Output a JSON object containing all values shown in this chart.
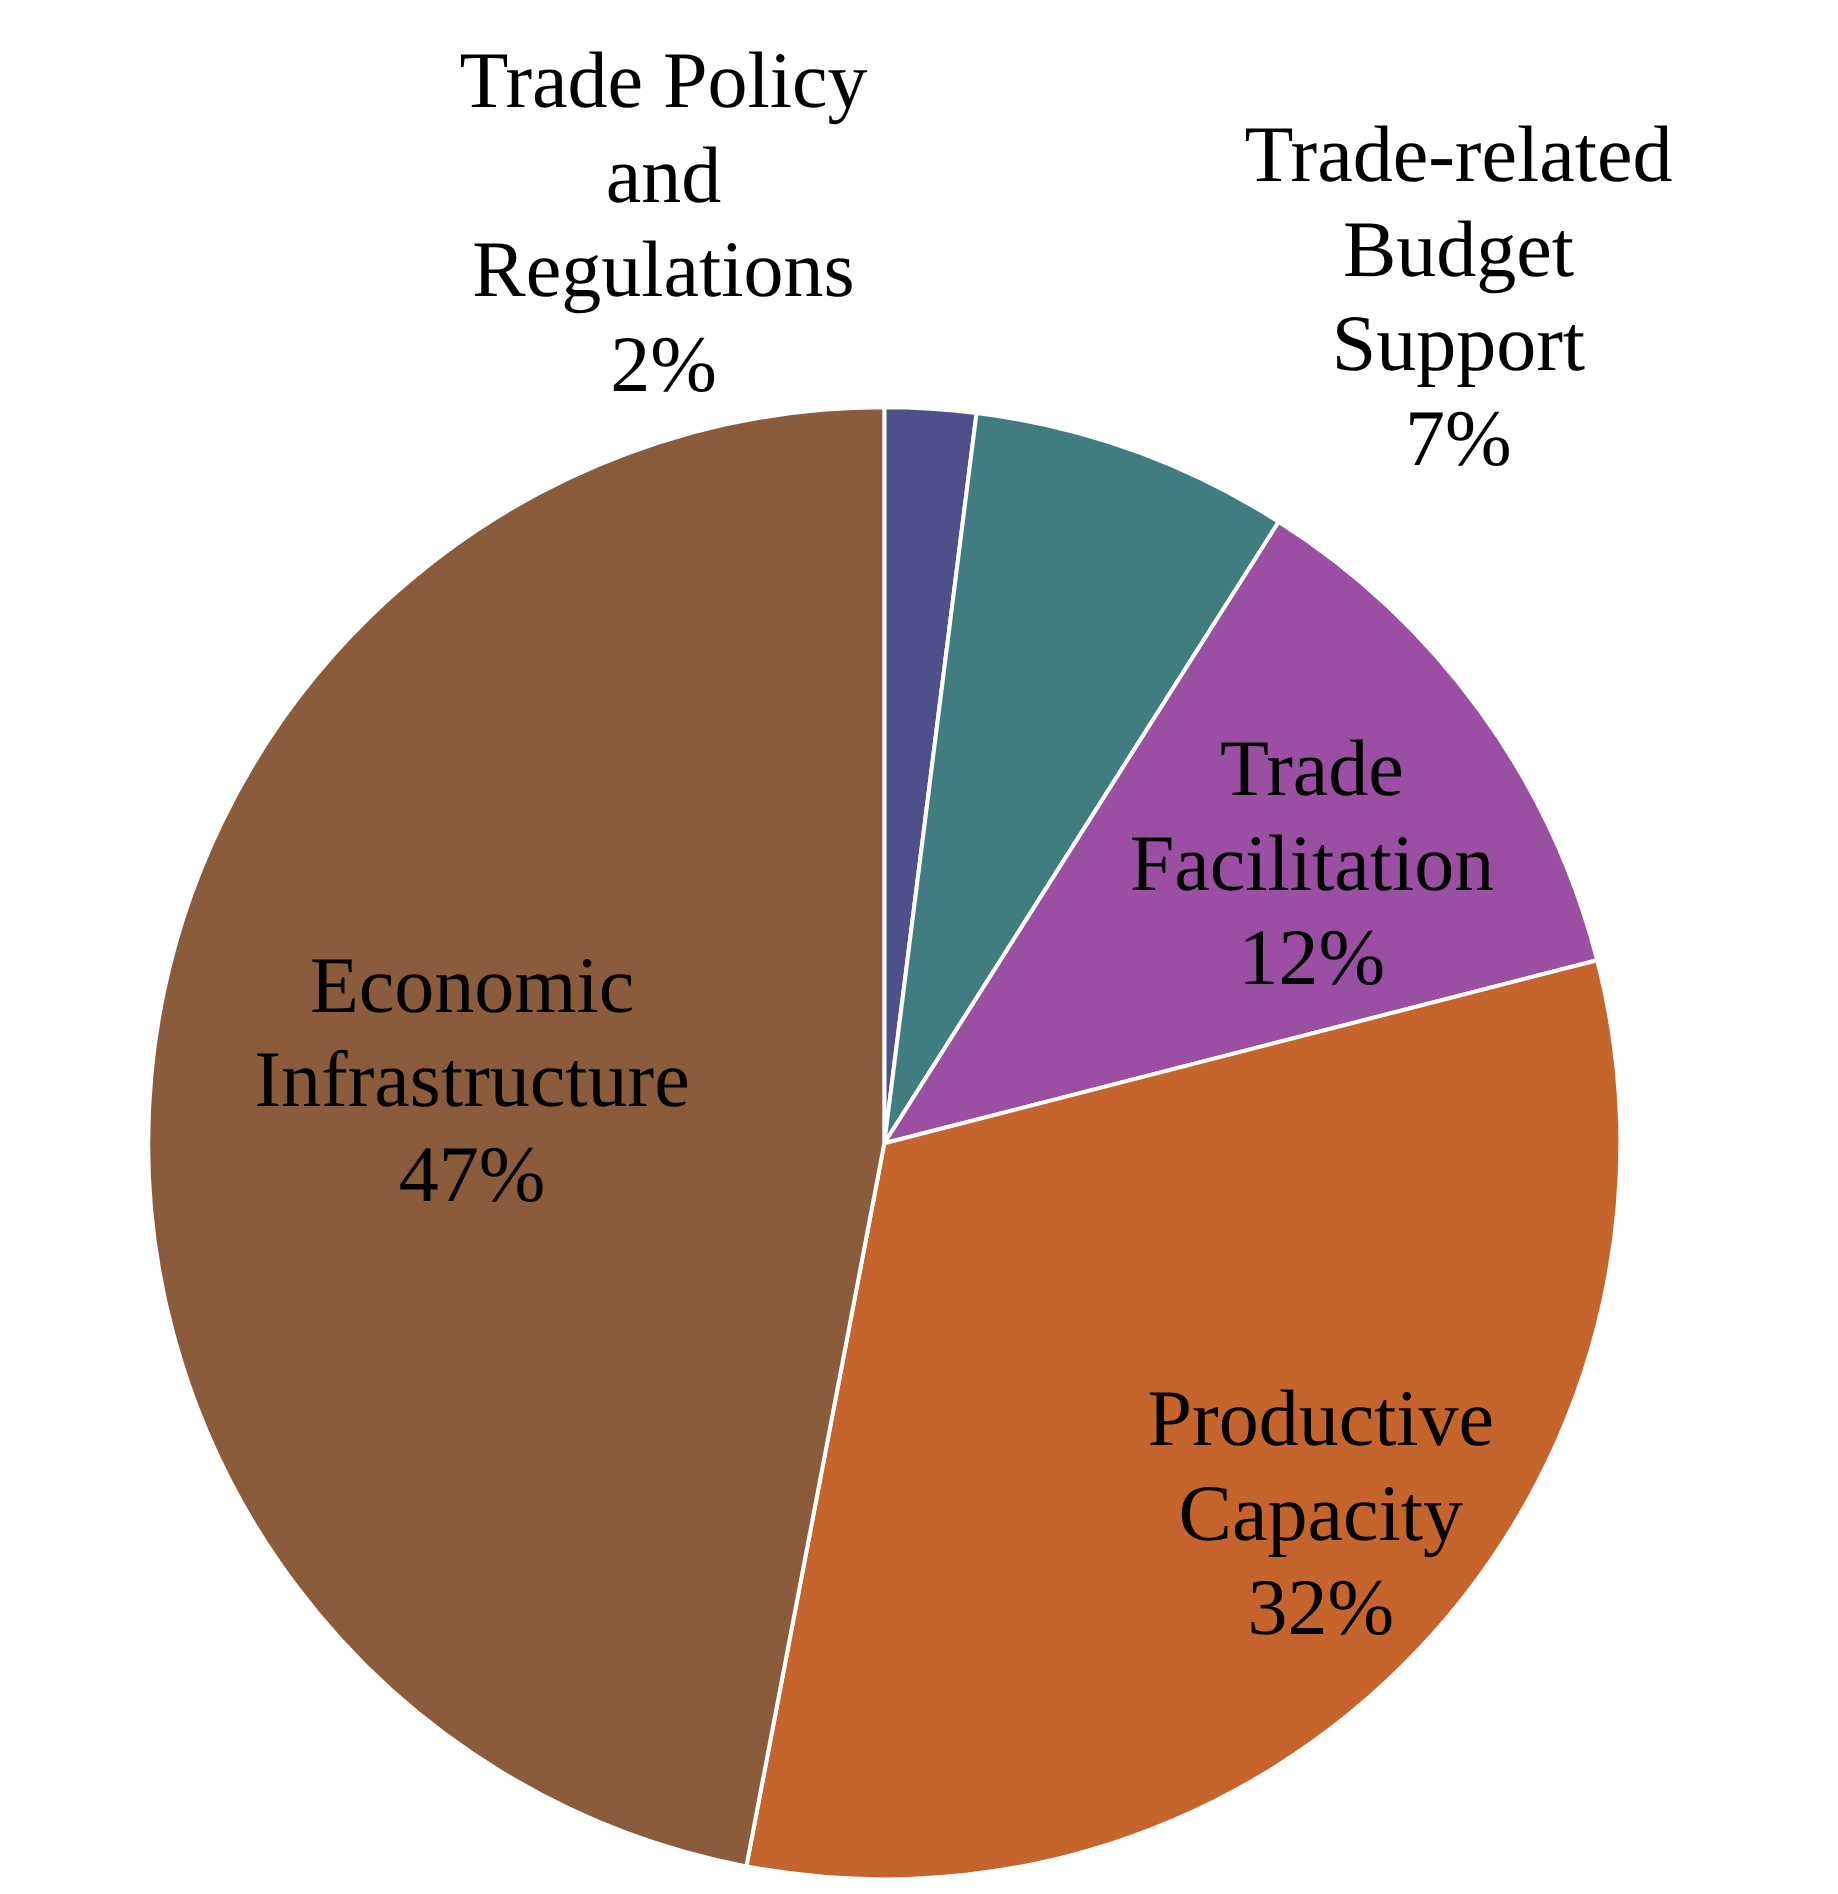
{
  "chart_data": {
    "type": "pie",
    "categories": [
      "Trade Policy and Regulations",
      "Trade-related Budget Support",
      "Trade Facilitation",
      "Productive Capacity",
      "Economic Infrastructure"
    ],
    "values": [
      2,
      7,
      12,
      32,
      47
    ],
    "value_labels": [
      "2%",
      "7%",
      "12%",
      "32%",
      "47%"
    ],
    "colors": [
      "#4f4f8a",
      "#417d80",
      "#9b4fa3",
      "#c5652d",
      "#8b5c3b"
    ]
  }
}
